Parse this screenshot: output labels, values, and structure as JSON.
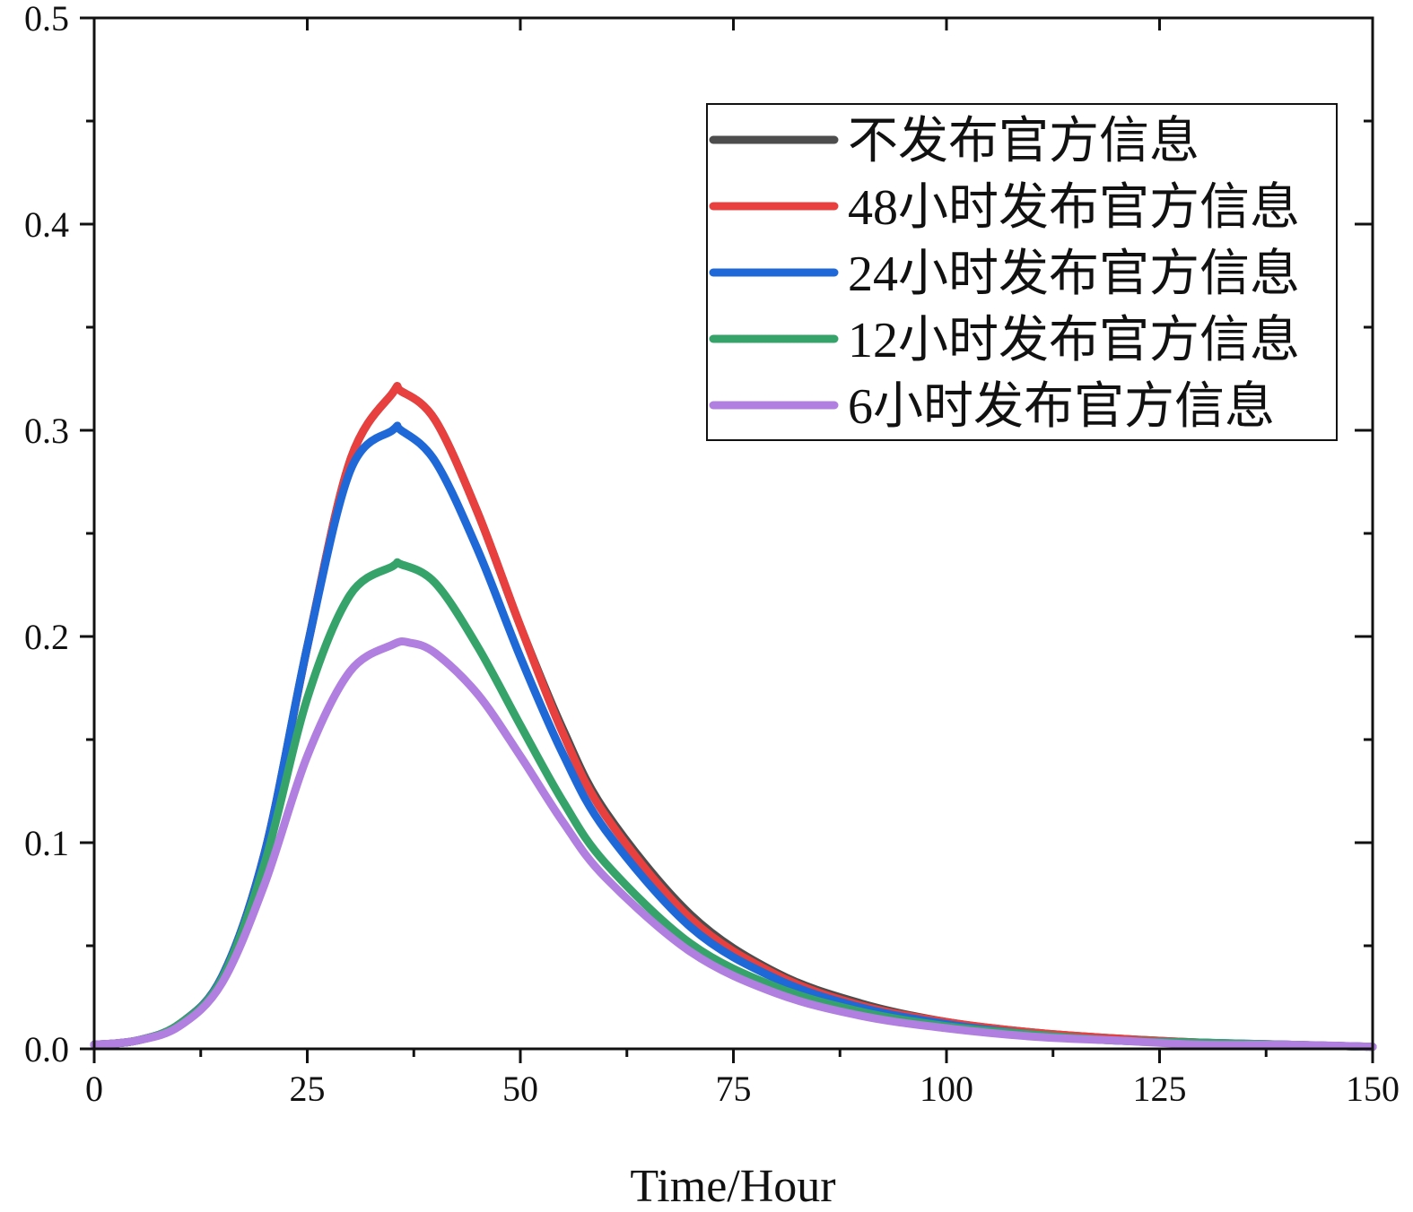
{
  "chart_data": {
    "type": "line",
    "title": "",
    "xlabel": "Time/Hour",
    "ylabel": "",
    "xlim": [
      0,
      150
    ],
    "ylim": [
      0,
      0.5
    ],
    "x_ticks": [
      0,
      25,
      50,
      75,
      100,
      125,
      150
    ],
    "x_tick_labels": [
      "0",
      "25",
      "50",
      "75",
      "100",
      "125",
      "150"
    ],
    "x_minor_ticks": [
      12.5,
      37.5,
      62.5,
      87.5,
      112.5,
      137.5
    ],
    "y_ticks": [
      0,
      0.1,
      0.2,
      0.3,
      0.4,
      0.5
    ],
    "y_tick_labels": [
      "0.0",
      "0.1",
      "0.2",
      "0.3",
      "0.4",
      "0.5"
    ],
    "y_minor_ticks": [
      0.05,
      0.15,
      0.25,
      0.35,
      0.45
    ],
    "grid": false,
    "legend_position": "top-right",
    "series": [
      {
        "name": "不发布官方信息",
        "color": "#4d4d4d",
        "x": [
          0,
          5,
          10,
          15,
          20,
          25,
          30,
          35,
          36,
          40,
          45,
          50,
          55,
          60,
          70,
          80,
          90,
          100,
          110,
          120,
          130,
          140,
          150
        ],
        "values": [
          0.002,
          0.004,
          0.012,
          0.035,
          0.095,
          0.195,
          0.285,
          0.318,
          0.319,
          0.305,
          0.26,
          0.205,
          0.155,
          0.115,
          0.065,
          0.037,
          0.022,
          0.013,
          0.008,
          0.005,
          0.003,
          0.002,
          0.001
        ]
      },
      {
        "name": "48小时发布官方信息",
        "color": "#e8403e",
        "x": [
          0,
          5,
          10,
          15,
          20,
          25,
          30,
          35,
          36,
          40,
          45,
          50,
          55,
          60,
          70,
          80,
          90,
          100,
          110,
          120,
          130,
          140,
          150
        ],
        "values": [
          0.002,
          0.004,
          0.012,
          0.035,
          0.095,
          0.195,
          0.285,
          0.318,
          0.319,
          0.305,
          0.26,
          0.205,
          0.153,
          0.113,
          0.063,
          0.036,
          0.021,
          0.013,
          0.008,
          0.005,
          0.003,
          0.002,
          0.001
        ]
      },
      {
        "name": "24小时发布官方信息",
        "color": "#1f68d8",
        "x": [
          0,
          5,
          10,
          15,
          20,
          25,
          30,
          35,
          36,
          40,
          45,
          50,
          55,
          60,
          70,
          80,
          90,
          100,
          110,
          120,
          130,
          140,
          150
        ],
        "values": [
          0.002,
          0.004,
          0.012,
          0.035,
          0.095,
          0.195,
          0.28,
          0.3,
          0.3,
          0.285,
          0.242,
          0.19,
          0.143,
          0.106,
          0.059,
          0.034,
          0.02,
          0.012,
          0.007,
          0.004,
          0.003,
          0.002,
          0.001
        ]
      },
      {
        "name": "12小时发布官方信息",
        "color": "#35a36a",
        "x": [
          0,
          5,
          10,
          15,
          20,
          25,
          30,
          35,
          36,
          40,
          45,
          50,
          55,
          60,
          70,
          80,
          90,
          100,
          110,
          120,
          130,
          140,
          150
        ],
        "values": [
          0.002,
          0.004,
          0.012,
          0.034,
          0.09,
          0.17,
          0.22,
          0.234,
          0.235,
          0.226,
          0.195,
          0.157,
          0.12,
          0.09,
          0.051,
          0.03,
          0.018,
          0.011,
          0.007,
          0.004,
          0.003,
          0.002,
          0.001
        ]
      },
      {
        "name": "6小时发布官方信息",
        "color": "#b07fe0",
        "x": [
          0,
          5,
          10,
          15,
          20,
          25,
          30,
          35,
          37,
          40,
          45,
          50,
          55,
          60,
          70,
          80,
          90,
          100,
          110,
          120,
          130,
          140,
          150
        ],
        "values": [
          0.002,
          0.004,
          0.011,
          0.032,
          0.08,
          0.142,
          0.183,
          0.196,
          0.197,
          0.192,
          0.172,
          0.142,
          0.11,
          0.083,
          0.047,
          0.027,
          0.016,
          0.01,
          0.006,
          0.004,
          0.002,
          0.002,
          0.001
        ]
      }
    ]
  }
}
